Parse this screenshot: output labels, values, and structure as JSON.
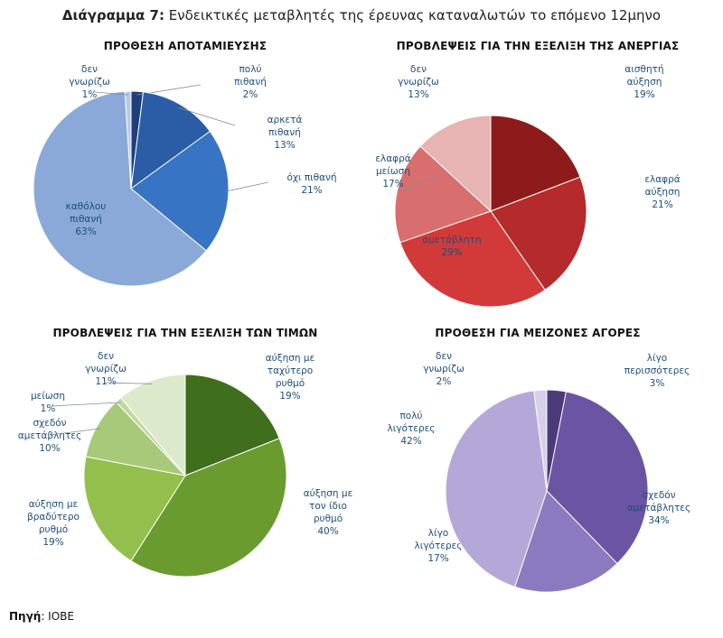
{
  "title_prefix": "Διάγραμμα 7:",
  "title_text": " Ενδεικτικές μεταβλητές της έρευνας καταναλωτών το επόμενο 12μηνο",
  "source_label": "Πηγή",
  "source_value": ": ΙΟΒΕ",
  "chart_data": [
    {
      "type": "pie",
      "title": "ΠΡΟΘΕΣΗ ΑΠΟΤΑΜΙΕΥΣΗΣ",
      "slices": [
        {
          "label": [
            "πολύ",
            "πιθανή"
          ],
          "value": 2,
          "color": "#1f3f7a"
        },
        {
          "label": [
            "αρκετά",
            "πιθανή"
          ],
          "value": 13,
          "color": "#2a5da6"
        },
        {
          "label": [
            "όχι πιθανή"
          ],
          "value": 21,
          "color": "#3874c4"
        },
        {
          "label": [
            "καθόλου",
            "πιθανή"
          ],
          "value": 63,
          "color": "#8aa9d8"
        },
        {
          "label": [
            "δεν",
            "γνωρίζω"
          ],
          "value": 1,
          "color": "#b9c9e3"
        }
      ]
    },
    {
      "type": "pie",
      "title": "ΠΡΟΒΛΕΨΕΙΣ ΓΙΑ ΤΗΝ ΕΞΕΛΙΞΗ ΤΗΣ ΑΝΕΡΓΙΑΣ",
      "slices": [
        {
          "label": [
            "αισθητή",
            "αύξηση"
          ],
          "value": 19,
          "color": "#8e1b1b"
        },
        {
          "label": [
            "ελαφρά",
            "αύξηση"
          ],
          "value": 21,
          "color": "#b52a2a"
        },
        {
          "label": [
            "αμετάβλητη"
          ],
          "value": 29,
          "color": "#d23a3a"
        },
        {
          "label": [
            "ελαφρά",
            "μείωση"
          ],
          "value": 17,
          "color": "#d96e6e"
        },
        {
          "label": [
            "δεν",
            "γνωρίζω"
          ],
          "value": 13,
          "color": "#e8b3b3"
        }
      ]
    },
    {
      "type": "pie",
      "title": "ΠΡΟΒΛΕΨΕΙΣ ΓΙΑ ΤΗΝ ΕΞΕΛΙΞΗ ΤΩΝ ΤΙΜΩΝ",
      "slices": [
        {
          "label": [
            "αύξηση με",
            "ταχύτερο",
            "ρυθμό"
          ],
          "value": 19,
          "color": "#3f6e1c"
        },
        {
          "label": [
            "αύξηση με",
            "τον ίδιο",
            "ρυθμό"
          ],
          "value": 40,
          "color": "#6a9b2f"
        },
        {
          "label": [
            "αύξηση με",
            "βραδύτερο",
            "ρυθμό"
          ],
          "value": 19,
          "color": "#93bf4c"
        },
        {
          "label": [
            "σχεδόν",
            "αμετάβλητες"
          ],
          "value": 10,
          "color": "#a9c97a"
        },
        {
          "label": [
            "μείωση"
          ],
          "value": 1,
          "color": "#c3d9a1"
        },
        {
          "label": [
            "δεν",
            "γνωρίζω"
          ],
          "value": 11,
          "color": "#dde9cb"
        }
      ]
    },
    {
      "type": "pie",
      "title": "ΠΡΟΘΕΣΗ ΓΙΑ ΜΕΙΖΟΝΕΣ ΑΓΟΡΕΣ",
      "slices": [
        {
          "label": [
            "λίγο",
            "περισσότερες"
          ],
          "value": 3,
          "color": "#4b3a7a"
        },
        {
          "label": [
            "σχεδόν",
            "αμετάβλητες"
          ],
          "value": 34,
          "color": "#6a54a3"
        },
        {
          "label": [
            "λίγο",
            "λιγότερες"
          ],
          "value": 17,
          "color": "#8c7ac0"
        },
        {
          "label": [
            "πολύ",
            "λιγότερες"
          ],
          "value": 42,
          "color": "#b4a8d8"
        },
        {
          "label": [
            "δεν",
            "γνωρίζω"
          ],
          "value": 2,
          "color": "#d7d0ea"
        }
      ]
    }
  ]
}
